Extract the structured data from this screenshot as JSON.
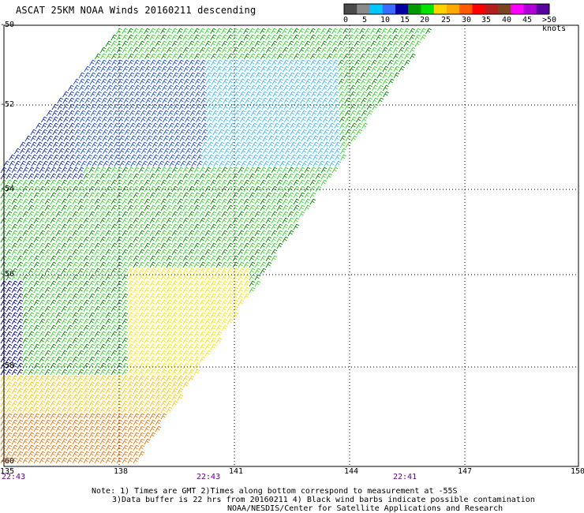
{
  "title": "ASCAT 25KM NOAA Winds 20160211 descending",
  "color_scale": {
    "labels": [
      "0",
      "5",
      "10",
      "15",
      "20",
      "25",
      "30",
      "35",
      "40",
      "45",
      ">50 knots"
    ],
    "colors": [
      "#4a4a4a",
      "#8a8a8a",
      "#00c8ff",
      "#3a6bff",
      "#0000a0",
      "#009a00",
      "#00e400",
      "#ffd400",
      "#ffaa00",
      "#ff5a00",
      "#ff0000",
      "#b21f1f",
      "#7a4420",
      "#ff00ff",
      "#b000d6",
      "#5a00a0"
    ]
  },
  "map": {
    "latitudes": [
      "-50",
      "-52",
      "-54",
      "-56",
      "-58",
      "-60"
    ],
    "longitudes": [
      "135",
      "138",
      "141",
      "144",
      "147",
      "150"
    ],
    "swath_times": [
      "22:43",
      "22:43",
      "22:41"
    ]
  },
  "notes": {
    "line1": "Note: 1) Times are GMT 2)Times along bottom correspond to measurement at -55S",
    "line2": "3)Data buffer is 22 hrs from 20160211 4) Black wind barbs indicate possible contamination",
    "line3": "NOAA/NESDIS/Center for Satellite Applications and Research"
  }
}
